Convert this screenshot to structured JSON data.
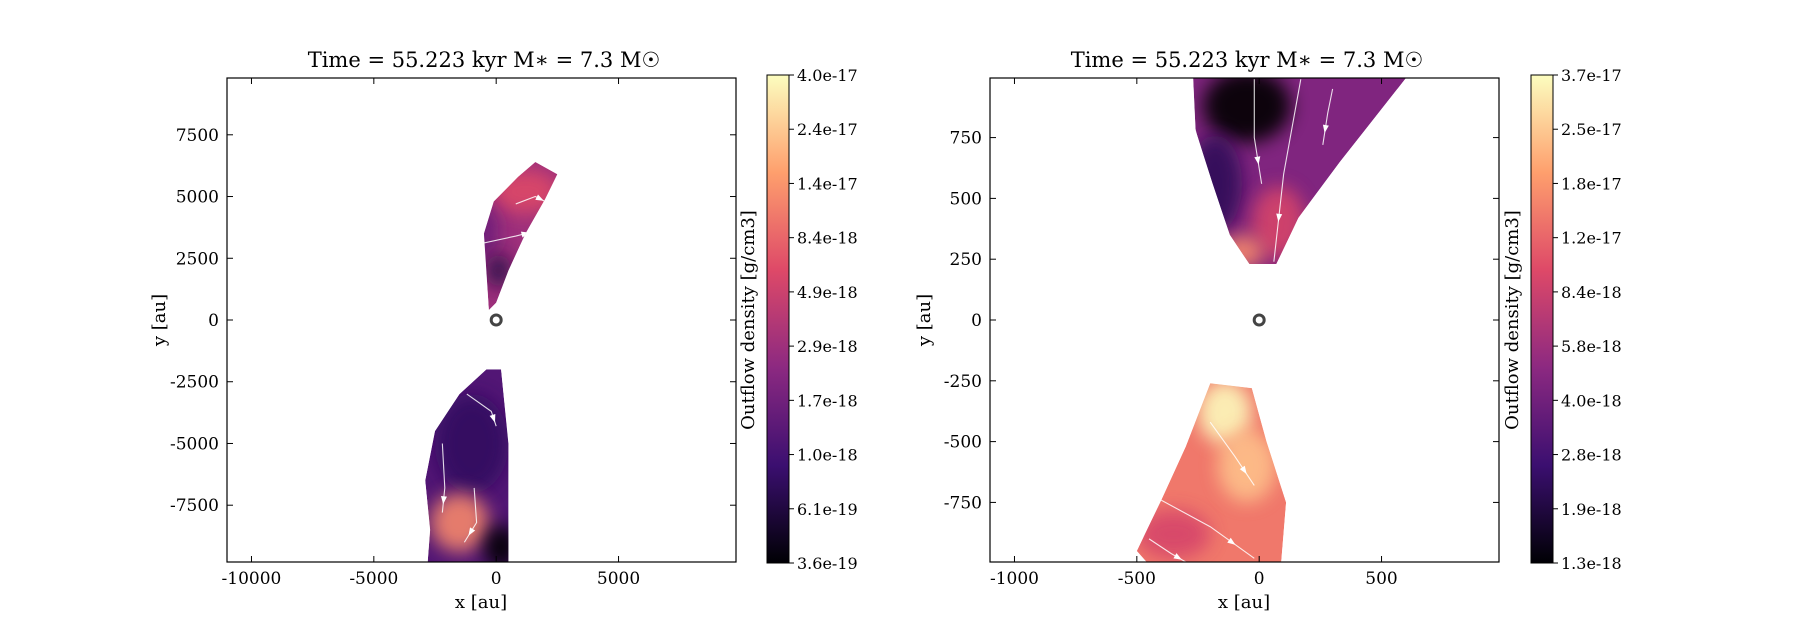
{
  "colors": {
    "background": "#ffffff",
    "frame": "#000000",
    "stream": "#ffffff",
    "star_marker": "#444444",
    "colormap": [
      "#000004",
      "#3b0f70",
      "#8c2981",
      "#de4968",
      "#fe9f6d",
      "#fcfdbf"
    ]
  },
  "chart_data": [
    {
      "type": "heatmap",
      "title": "Time = 55.223 kyr    M∗ = 7.3 M☉",
      "xlabel": "x [au]",
      "ylabel": "y [au]",
      "xlim": [
        -11000,
        9800
      ],
      "ylim": [
        -9800,
        9800
      ],
      "xticks": [
        -10000,
        -5000,
        0,
        5000
      ],
      "yticks": [
        7500,
        5000,
        2500,
        0,
        -2500,
        -5000,
        -7500
      ],
      "grid": false,
      "colorbar": {
        "label": "Outflow density [g/cm3]",
        "scale": "log",
        "colormap": "magma",
        "range": [
          3.6e-19,
          4e-17
        ],
        "ticks": [
          "4.0e-17",
          "2.4e-17",
          "1.4e-17",
          "8.4e-18",
          "4.9e-18",
          "2.9e-18",
          "1.7e-18",
          "1.0e-18",
          "6.1e-19",
          "3.6e-19"
        ]
      },
      "star_position": [
        0,
        0
      ],
      "regions": [
        {
          "name": "upper lobe",
          "polygon": [
            [
              -300,
              400
            ],
            [
              -500,
              3500
            ],
            [
              -100,
              4800
            ],
            [
              900,
              5800
            ],
            [
              1600,
              6400
            ],
            [
              2500,
              5900
            ],
            [
              2000,
              4900
            ],
            [
              1200,
              3500
            ],
            [
              500,
              2000
            ],
            [
              0,
              700
            ]
          ],
          "density": 2.9e-18
        },
        {
          "name": "lower lobe",
          "polygon": [
            [
              -400,
              -2000
            ],
            [
              -1500,
              -3000
            ],
            [
              -2500,
              -4500
            ],
            [
              -2900,
              -6500
            ],
            [
              -2700,
              -8500
            ],
            [
              -2800,
              -9800
            ],
            [
              500,
              -9800
            ],
            [
              500,
              -5000
            ],
            [
              200,
              -2000
            ]
          ],
          "density": 1.2e-18
        }
      ],
      "patches": [
        {
          "center": [
            1200,
            5200
          ],
          "rx": 1400,
          "ry": 900,
          "density": 6e-18
        },
        {
          "center": [
            -800,
            3600
          ],
          "rx": 900,
          "ry": 1200,
          "density": 1.6e-18
        },
        {
          "center": [
            100,
            2000
          ],
          "rx": 500,
          "ry": 700,
          "density": 6.5e-19
        },
        {
          "center": [
            -1000,
            -5000
          ],
          "rx": 1500,
          "ry": 2000,
          "density": 8e-19
        },
        {
          "center": [
            -1500,
            -8200
          ],
          "rx": 1200,
          "ry": 1200,
          "density": 1.2e-17
        },
        {
          "center": [
            200,
            -9200
          ],
          "rx": 700,
          "ry": 900,
          "density": 3.6e-19
        }
      ]
    },
    {
      "type": "heatmap",
      "title": "Time = 55.223 kyr    M∗ = 7.3 M☉",
      "xlabel": "x [au]",
      "ylabel": "y [au]",
      "xlim": [
        -1100,
        980
      ],
      "ylim": [
        -995,
        995
      ],
      "xticks": [
        -1000,
        -500,
        0,
        500
      ],
      "yticks": [
        750,
        500,
        250,
        0,
        -250,
        -500,
        -750
      ],
      "grid": false,
      "colorbar": {
        "label": "Outflow density [g/cm3]",
        "scale": "log",
        "colormap": "magma",
        "range": [
          1.3e-18,
          3.7e-17
        ],
        "ticks": [
          "3.7e-17",
          "2.5e-17",
          "1.8e-17",
          "1.2e-17",
          "8.4e-18",
          "5.8e-18",
          "4.0e-18",
          "2.8e-18",
          "1.9e-18",
          "1.3e-18"
        ]
      },
      "star_position": [
        0,
        0
      ],
      "regions": [
        {
          "name": "upper lobe",
          "polygon": [
            [
              -270,
              995
            ],
            [
              -260,
              780
            ],
            [
              -190,
              560
            ],
            [
              -120,
              350
            ],
            [
              -40,
              230
            ],
            [
              70,
              230
            ],
            [
              160,
              420
            ],
            [
              330,
              650
            ],
            [
              600,
              995
            ]
          ],
          "density": 4.5e-18
        },
        {
          "name": "lower lobe",
          "polygon": [
            [
              -200,
              -260
            ],
            [
              -300,
              -520
            ],
            [
              -400,
              -740
            ],
            [
              -500,
              -950
            ],
            [
              -460,
              -995
            ],
            [
              90,
              -995
            ],
            [
              110,
              -750
            ],
            [
              30,
              -500
            ],
            [
              -30,
              -280
            ]
          ],
          "density": 1.4e-17
        }
      ],
      "patches": [
        {
          "center": [
            -50,
            880
          ],
          "rx": 180,
          "ry": 150,
          "density": 1.3e-18
        },
        {
          "center": [
            -180,
            560
          ],
          "rx": 110,
          "ry": 200,
          "density": 2.2e-18
        },
        {
          "center": [
            80,
            400
          ],
          "rx": 110,
          "ry": 150,
          "density": 9e-18
        },
        {
          "center": [
            -70,
            280
          ],
          "rx": 90,
          "ry": 70,
          "density": 1.6e-17
        },
        {
          "center": [
            -140,
            -380
          ],
          "rx": 110,
          "ry": 130,
          "density": 3.6e-17
        },
        {
          "center": [
            -50,
            -600
          ],
          "rx": 120,
          "ry": 150,
          "density": 2.4e-17
        },
        {
          "center": [
            -350,
            -880
          ],
          "rx": 150,
          "ry": 100,
          "density": 9e-18
        }
      ]
    }
  ]
}
